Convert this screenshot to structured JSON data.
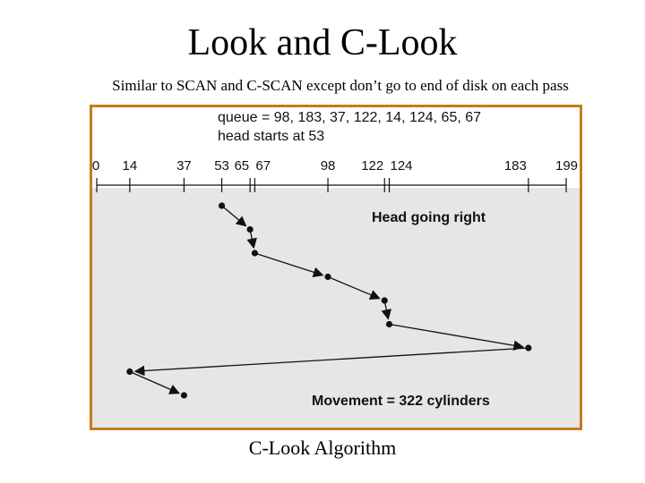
{
  "title": "Look and C-Look",
  "subtitle": "Similar to SCAN and C-SCAN except don’t go to end of disk on each pass",
  "caption": "C-Look Algorithm",
  "figure": {
    "queue_line": "queue = 98, 183, 37, 122, 14, 124, 65, 67",
    "head_line": "head starts at 53",
    "direction_label": "Head going right",
    "movement_label": "Movement = 322 cylinders",
    "ticks": [
      "0",
      "14",
      "37",
      "53",
      "65",
      "67",
      "98",
      "122",
      "124",
      "183",
      "199"
    ],
    "colors": {
      "frame": "#c87a1e",
      "plot_bg": "#e6e6e6",
      "ink": "#111111"
    }
  },
  "chart_data": {
    "type": "line",
    "x_range": [
      0,
      199
    ],
    "ticks": [
      0,
      14,
      37,
      53,
      65,
      67,
      98,
      122,
      124,
      183,
      199
    ],
    "head_start": 53,
    "path": [
      53,
      65,
      67,
      98,
      122,
      124,
      183,
      14,
      37
    ]
  }
}
